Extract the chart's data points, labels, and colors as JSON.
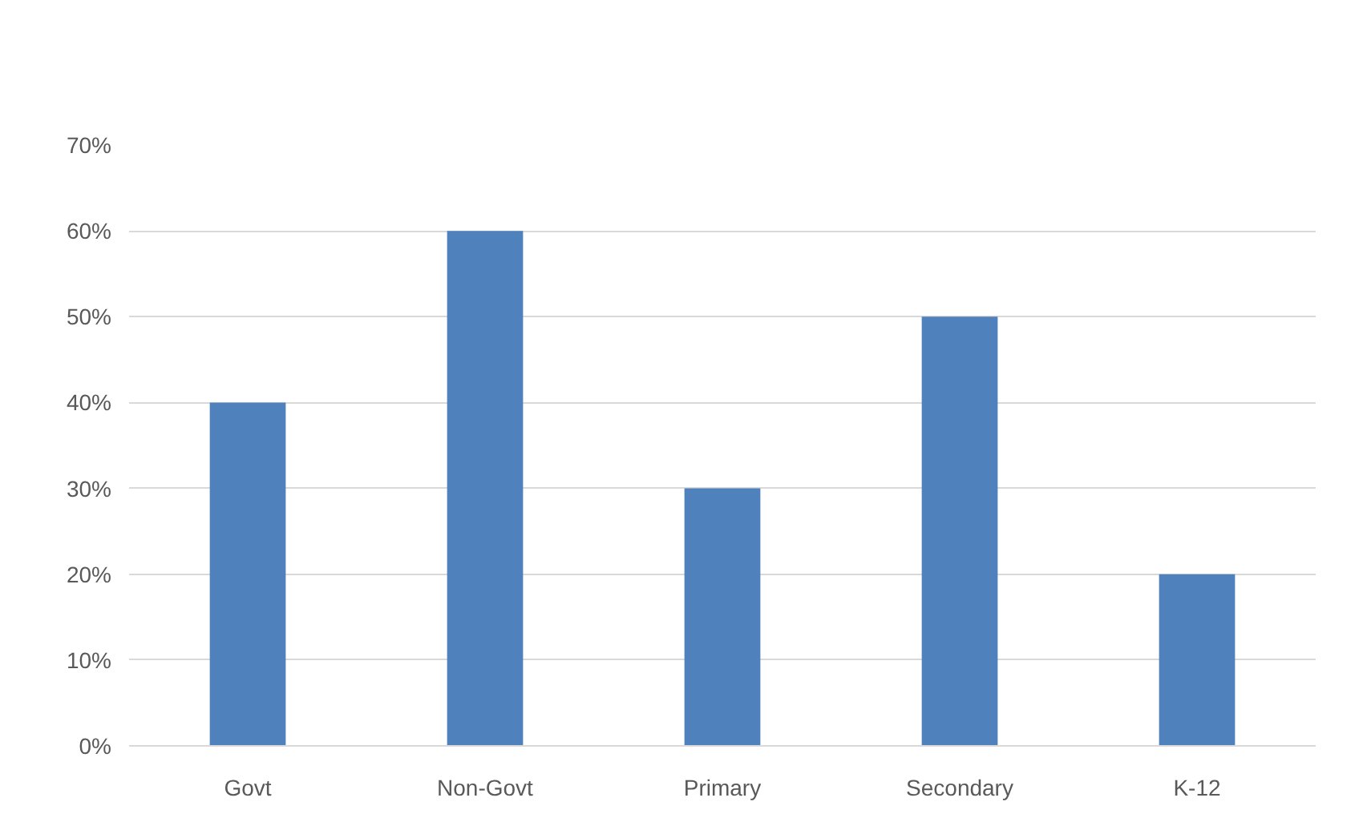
{
  "chart_data": {
    "type": "bar",
    "categories": [
      "Govt",
      "Non-Govt",
      "Primary",
      "Secondary",
      "K-12"
    ],
    "values": [
      40,
      60,
      30,
      50,
      20
    ],
    "color": "#4f81bd",
    "ylim": [
      0,
      70
    ],
    "yticks": [
      {
        "value": 0,
        "label": "0%"
      },
      {
        "value": 10,
        "label": "10%"
      },
      {
        "value": 20,
        "label": "20%"
      },
      {
        "value": 30,
        "label": "30%"
      },
      {
        "value": 40,
        "label": "40%"
      },
      {
        "value": 50,
        "label": "50%"
      },
      {
        "value": 60,
        "label": "60%"
      },
      {
        "value": 70,
        "label": "70%"
      }
    ],
    "grid": "y"
  }
}
